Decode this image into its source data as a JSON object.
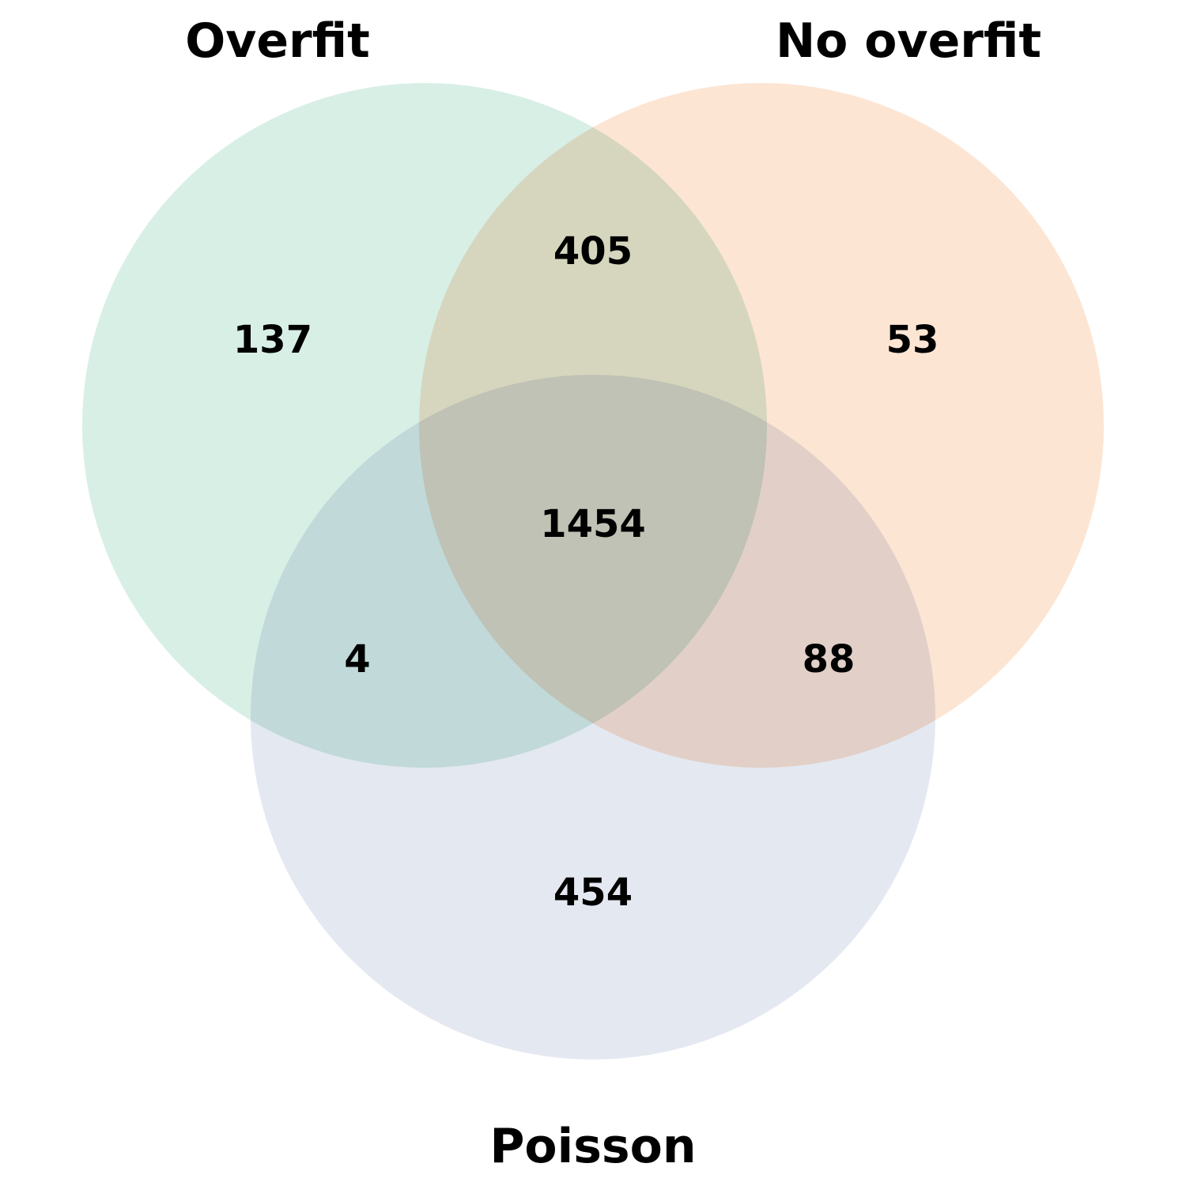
{
  "venn": {
    "sets": [
      {
        "id": "overfit",
        "label": "Overfit",
        "color": "#d8efe6"
      },
      {
        "id": "no_overfit",
        "label": "No overfit",
        "color": "#fde5d4"
      },
      {
        "id": "poisson",
        "label": "Poisson",
        "color": "#e4e8f1"
      }
    ],
    "regions": {
      "overfit_only": "137",
      "no_overfit_only": "53",
      "poisson_only": "454",
      "overfit_no_overfit": "405",
      "overfit_poisson": "4",
      "no_overfit_poisson": "88",
      "all_three": "1454"
    }
  }
}
